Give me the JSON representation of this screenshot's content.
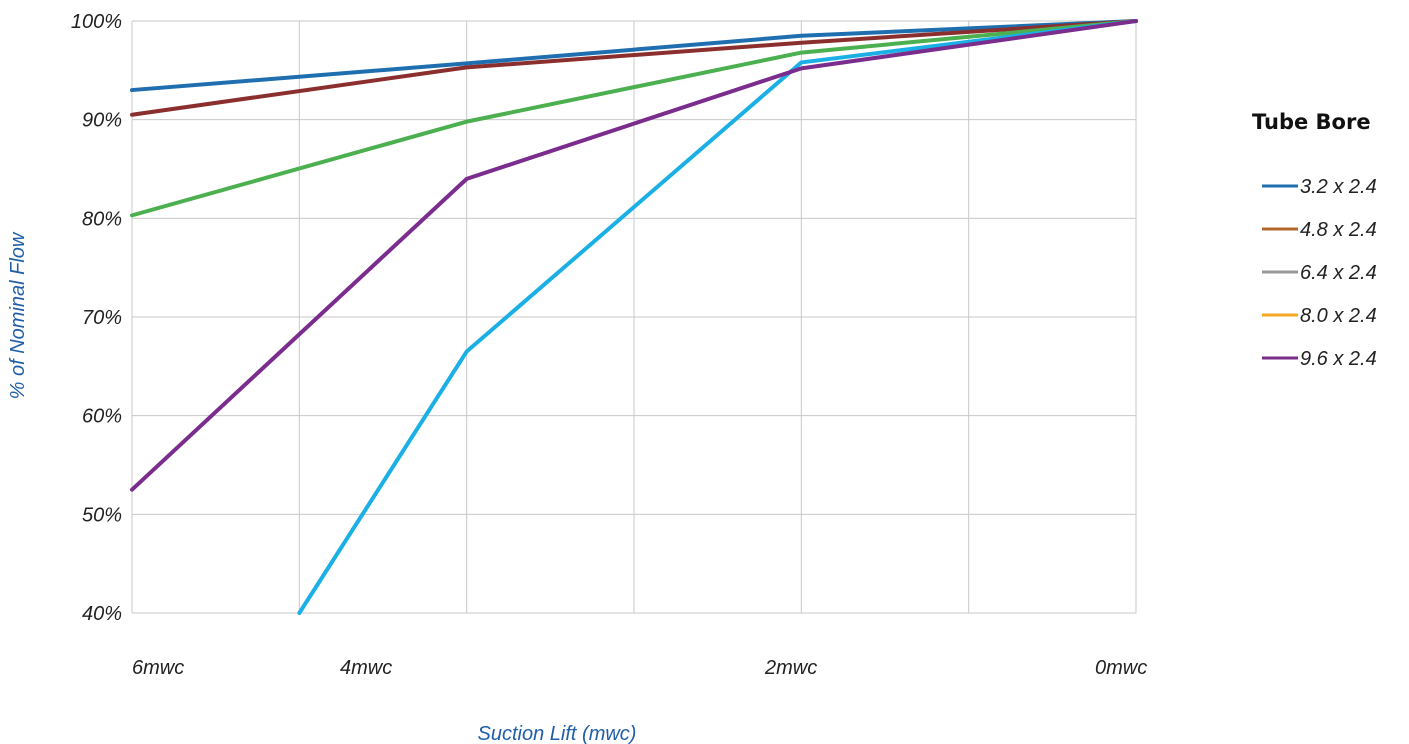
{
  "chart_data": {
    "type": "line",
    "xlabel": "Suction Lift (mwc)",
    "ylabel": "% of Nominal Flow",
    "x_range": [
      6,
      0
    ],
    "ylim": [
      40,
      100
    ],
    "y_ticks": [
      "100%",
      "90%",
      "80%",
      "70%",
      "60%",
      "50%",
      "40%"
    ],
    "x_ticks": [
      {
        "label": "6mwc",
        "value": 6
      },
      {
        "label": "4mwc",
        "value": 4
      },
      {
        "label": "2mwc",
        "value": 2
      },
      {
        "label": "0mwc",
        "value": 0
      }
    ],
    "grid": true,
    "legend": {
      "title": "Tube Bore",
      "position": "right"
    },
    "series": [
      {
        "name": "3.2 x 2.4",
        "color": "#1f6fb0",
        "x": [
          6,
          4,
          2,
          0
        ],
        "y": [
          93,
          95.7,
          98.5,
          100
        ]
      },
      {
        "name": "4.8 x 2.4",
        "color": "#8b2e2e",
        "x": [
          6,
          4,
          2,
          0
        ],
        "y": [
          90.5,
          95.3,
          97.8,
          100
        ]
      },
      {
        "name": "6.4 x 2.4",
        "color": "#4caf50",
        "x": [
          6,
          4,
          2,
          0
        ],
        "y": [
          80.3,
          89.8,
          96.8,
          100
        ]
      },
      {
        "name": "8.0 x 2.4",
        "color": "#1ab0e6",
        "x": [
          5,
          4,
          2,
          0
        ],
        "y": [
          40,
          66.5,
          95.8,
          100
        ]
      },
      {
        "name": "9.6 x 2.4",
        "color": "#7b2d8e",
        "x": [
          6,
          4,
          2,
          0
        ],
        "y": [
          52.5,
          84,
          95.2,
          100
        ]
      }
    ],
    "legend_swatches": [
      "#1f6fb0",
      "#b5652a",
      "#999999",
      "#f5a623",
      "#7b2d8e"
    ]
  }
}
